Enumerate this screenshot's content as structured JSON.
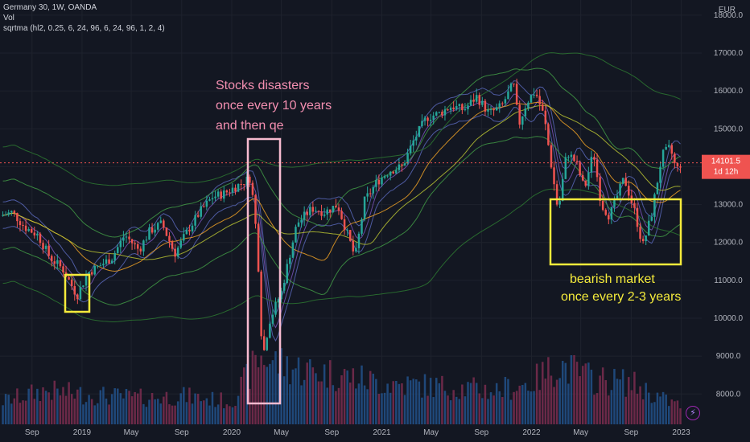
{
  "legend": {
    "symbol": "Germany 30, 1W, OANDA",
    "volume": "Vol",
    "indicator": "sqrtma (hl2, 0.25, 6, 24, 96, 6, 24, 96, 1, 2, 4)"
  },
  "currency": "EUR",
  "last_price": "14101.5",
  "countdown": "1d 12h",
  "icons": {
    "alert": "lightning-icon"
  },
  "colors": {
    "background": "#131722",
    "up": "#26a69a",
    "down": "#ef5350",
    "pink": "#f48fb1",
    "yellow": "#f5eb3b"
  },
  "annotations": {
    "crash_title": [
      "Stocks disasters",
      "once every 10 years",
      "and then qe"
    ],
    "bear_title": [
      "bearish market",
      "once every 2-3 years"
    ]
  },
  "chart_data": {
    "type": "candlestick",
    "title": "Germany 30, 1W, OANDA",
    "y_ticks": [
      8000.0,
      9000.0,
      10000.0,
      11000.0,
      12000.0,
      13000.0,
      14000.0,
      15000.0,
      16000.0,
      17000.0,
      18000.0
    ],
    "y_tick_labels": [
      "8000.0",
      "9000.0",
      "10000.0",
      "11000.0",
      "12000.0",
      "13000.0",
      "14000.0",
      "15000.0",
      "16000.0",
      "17000.0",
      "18000.0"
    ],
    "ylim": [
      7200,
      18400
    ],
    "x_ticks": [
      "Sep",
      "2019",
      "May",
      "Sep",
      "2020",
      "May",
      "Sep",
      "2021",
      "May",
      "Sep",
      "2022",
      "May",
      "Sep",
      "2023"
    ],
    "x_tick_dates": [
      "2018-09-01",
      "2019-01-01",
      "2019-05-01",
      "2019-09-01",
      "2020-01-01",
      "2020-05-01",
      "2020-09-01",
      "2021-01-01",
      "2021-05-01",
      "2021-09-01",
      "2022-01-01",
      "2022-05-01",
      "2022-09-01",
      "2023-01-01"
    ],
    "x_range": [
      "2018-06-15",
      "2023-02-20"
    ],
    "price_path": [
      [
        "2018-06-15",
        12700
      ],
      [
        "2018-07-15",
        12800
      ],
      [
        "2018-08-15",
        12400
      ],
      [
        "2018-09-15",
        12200
      ],
      [
        "2018-10-15",
        11600
      ],
      [
        "2018-11-15",
        11300
      ],
      [
        "2018-12-20",
        10600
      ],
      [
        "2019-01-15",
        11200
      ],
      [
        "2019-02-15",
        11400
      ],
      [
        "2019-03-15",
        11600
      ],
      [
        "2019-04-15",
        12200
      ],
      [
        "2019-05-20",
        11800
      ],
      [
        "2019-06-15",
        12300
      ],
      [
        "2019-07-15",
        12500
      ],
      [
        "2019-08-15",
        11700
      ],
      [
        "2019-09-15",
        12300
      ],
      [
        "2019-10-15",
        12800
      ],
      [
        "2019-11-15",
        13200
      ],
      [
        "2019-12-15",
        13300
      ],
      [
        "2020-01-15",
        13500
      ],
      [
        "2020-02-15",
        13700
      ],
      [
        "2020-02-25",
        12900
      ],
      [
        "2020-03-05",
        11600
      ],
      [
        "2020-03-16",
        8900
      ],
      [
        "2020-04-01",
        9900
      ],
      [
        "2020-05-01",
        10700
      ],
      [
        "2020-06-08",
        12500
      ],
      [
        "2020-07-15",
        12900
      ],
      [
        "2020-08-15",
        12800
      ],
      [
        "2020-09-15",
        13000
      ],
      [
        "2020-10-28",
        11600
      ],
      [
        "2020-11-20",
        13100
      ],
      [
        "2020-12-20",
        13600
      ],
      [
        "2021-01-20",
        13900
      ],
      [
        "2021-02-20",
        14000
      ],
      [
        "2021-03-20",
        14700
      ],
      [
        "2021-04-20",
        15300
      ],
      [
        "2021-05-20",
        15400
      ],
      [
        "2021-06-20",
        15600
      ],
      [
        "2021-07-20",
        15500
      ],
      [
        "2021-08-20",
        15850
      ],
      [
        "2021-09-20",
        15400
      ],
      [
        "2021-10-20",
        15600
      ],
      [
        "2021-11-18",
        16200
      ],
      [
        "2021-12-01",
        15100
      ],
      [
        "2021-12-20",
        15700
      ],
      [
        "2022-01-10",
        16000
      ],
      [
        "2022-02-01",
        15300
      ],
      [
        "2022-03-07",
        12800
      ],
      [
        "2022-03-28",
        14400
      ],
      [
        "2022-04-20",
        14100
      ],
      [
        "2022-05-10",
        13400
      ],
      [
        "2022-06-01",
        14400
      ],
      [
        "2022-06-20",
        13000
      ],
      [
        "2022-07-10",
        12700
      ],
      [
        "2022-08-15",
        13700
      ],
      [
        "2022-09-10",
        12800
      ],
      [
        "2022-09-29",
        11900
      ],
      [
        "2022-10-20",
        12700
      ],
      [
        "2022-11-15",
        14300
      ],
      [
        "2022-12-05",
        14500
      ],
      [
        "2022-12-20",
        13900
      ],
      [
        "2023-01-01",
        14100
      ]
    ],
    "volume_path": [
      [
        "2018-06-15",
        0.3
      ],
      [
        "2018-10-01",
        0.45
      ],
      [
        "2019-01-01",
        0.4
      ],
      [
        "2019-06-01",
        0.35
      ],
      [
        "2019-09-01",
        0.38
      ],
      [
        "2020-01-01",
        0.3
      ],
      [
        "2020-03-10",
        0.9
      ],
      [
        "2020-06-01",
        0.75
      ],
      [
        "2020-10-01",
        0.65
      ],
      [
        "2021-01-01",
        0.55
      ],
      [
        "2021-06-01",
        0.5
      ],
      [
        "2021-10-01",
        0.45
      ],
      [
        "2022-01-01",
        0.55
      ],
      [
        "2022-03-07",
        0.8
      ],
      [
        "2022-06-01",
        0.6
      ],
      [
        "2022-09-01",
        0.55
      ],
      [
        "2022-12-01",
        0.3
      ],
      [
        "2023-01-01",
        0.25
      ]
    ],
    "grid": true
  }
}
